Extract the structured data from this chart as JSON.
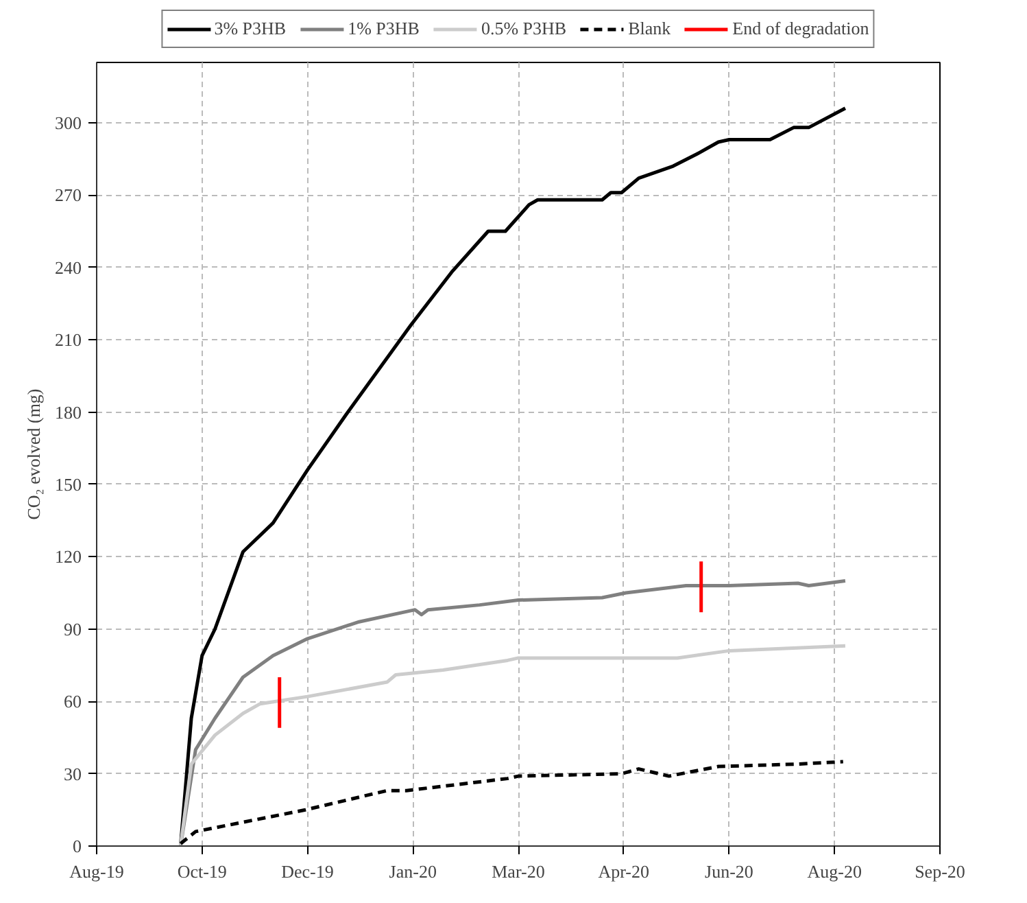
{
  "chart_data": {
    "type": "line",
    "ylabel": "CO₂ evolved (mg)",
    "xlim": [
      "2019-08-25",
      "2020-09-20"
    ],
    "xticks": [
      {
        "value": "2019-08-25",
        "label": "Aug-19"
      },
      {
        "value": "2019-10-13",
        "label": "Oct-19"
      },
      {
        "value": "2019-12-01",
        "label": "Dec-19"
      },
      {
        "value": "2020-01-19",
        "label": "Jan-20"
      },
      {
        "value": "2020-03-08",
        "label": "Mar-20"
      },
      {
        "value": "2020-04-26",
        "label": "Apr-20"
      },
      {
        "value": "2020-06-14",
        "label": "Jun-20"
      },
      {
        "value": "2020-08-02",
        "label": "Aug-20"
      },
      {
        "value": "2020-09-20",
        "label": "Sep-20"
      }
    ],
    "ylim": [
      0,
      325
    ],
    "yticks": [
      0,
      30,
      60,
      90,
      120,
      150,
      180,
      210,
      240,
      270,
      300
    ],
    "grid": true,
    "legend": "top",
    "series": [
      {
        "name": "3% P3HB",
        "color": "#000000",
        "line_style": "solid",
        "x": [
          "2019-10-03",
          "2019-10-08",
          "2019-10-13",
          "2019-10-19",
          "2019-11-01",
          "2019-11-15",
          "2019-12-01",
          "2019-12-19",
          "2020-01-18",
          "2020-02-06",
          "2020-02-19",
          "2020-02-23",
          "2020-03-02",
          "2020-03-13",
          "2020-03-17",
          "2020-04-16",
          "2020-04-20",
          "2020-04-25",
          "2020-05-03",
          "2020-05-19",
          "2020-05-30",
          "2020-06-09",
          "2020-06-14",
          "2020-07-03",
          "2020-07-14",
          "2020-07-21",
          "2020-08-07"
        ],
        "values": [
          0,
          53,
          79,
          90,
          122,
          134,
          156,
          179,
          216,
          238,
          251,
          255,
          255,
          266,
          268,
          268,
          271,
          271,
          277,
          282,
          287,
          292,
          293,
          293,
          298,
          298,
          306
        ]
      },
      {
        "name": "1% P3HB",
        "color": "#808080",
        "line_style": "solid",
        "x": [
          "2019-10-03",
          "2019-10-10",
          "2019-10-19",
          "2019-11-01",
          "2019-11-15",
          "2019-12-01",
          "2019-12-25",
          "2020-01-20",
          "2020-01-23",
          "2020-01-26",
          "2020-02-19",
          "2020-03-08",
          "2020-04-16",
          "2020-04-27",
          "2020-05-25",
          "2020-06-14",
          "2020-07-16",
          "2020-07-21",
          "2020-08-07"
        ],
        "values": [
          0,
          40,
          53,
          70,
          79,
          86,
          93,
          98,
          96,
          98,
          100,
          102,
          103,
          105,
          108,
          108,
          109,
          108,
          110
        ]
      },
      {
        "name": "0.5% P3HB",
        "color": "#cccccc",
        "line_style": "solid",
        "x": [
          "2019-10-03",
          "2019-10-08",
          "2019-10-19",
          "2019-11-01",
          "2019-11-09",
          "2019-12-01",
          "2020-01-07",
          "2020-01-11",
          "2020-02-02",
          "2020-03-03",
          "2020-03-08",
          "2020-04-23",
          "2020-05-21",
          "2020-06-14",
          "2020-08-07"
        ],
        "values": [
          0,
          34,
          46,
          55,
          59,
          62,
          68,
          71,
          73,
          77,
          78,
          78,
          78,
          81,
          83
        ]
      },
      {
        "name": "Blank",
        "color": "#000000",
        "line_style": "dashed",
        "x": [
          "2019-10-03",
          "2019-10-10",
          "2019-11-30",
          "2020-01-07",
          "2020-01-16",
          "2020-03-03",
          "2020-03-08",
          "2020-04-25",
          "2020-05-03",
          "2020-05-17",
          "2020-06-09",
          "2020-07-16",
          "2020-08-06"
        ],
        "values": [
          1,
          6,
          15,
          23,
          23,
          28,
          29,
          30,
          32,
          29,
          33,
          34,
          35
        ]
      },
      {
        "name": "End of degradation",
        "color": "#ff0000",
        "line_style": "solid",
        "x": [
          "2019-11-18",
          "2019-11-18",
          null,
          "2020-06-01",
          "2020-06-01"
        ],
        "values": [
          49,
          70,
          null,
          97,
          118
        ]
      }
    ]
  }
}
